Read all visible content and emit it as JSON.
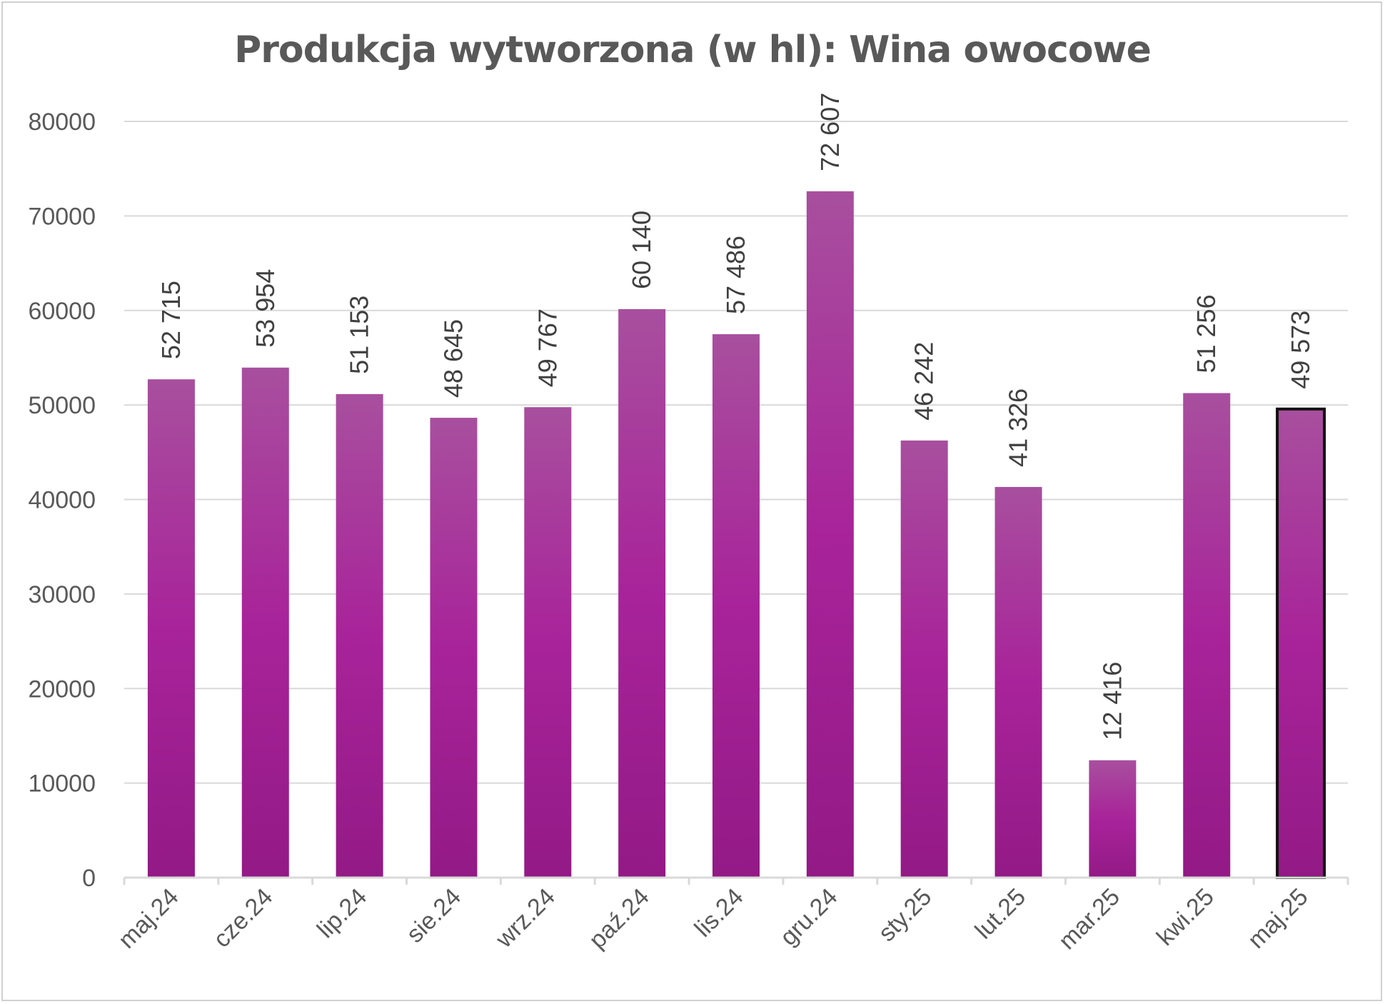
{
  "chart_data": {
    "type": "bar",
    "title": "Produkcja wytworzona (w hl): Wina owocowe",
    "categories": [
      "maj.24",
      "cze.24",
      "lip.24",
      "sie.24",
      "wrz.24",
      "paź.24",
      "lis.24",
      "gru.24",
      "sty.25",
      "lut.25",
      "mar.25",
      "kwi.25",
      "maj.25"
    ],
    "values": [
      52715,
      53954,
      51153,
      48645,
      49767,
      60140,
      57486,
      72607,
      46242,
      41326,
      12416,
      51256,
      49573
    ],
    "data_labels": [
      "52 715",
      "53 954",
      "51 153",
      "48 645",
      "49 767",
      "60 140",
      "57 486",
      "72 607",
      "46 242",
      "41 326",
      "12 416",
      "51 256",
      "49 573"
    ],
    "yticks": [
      "0",
      "10000",
      "20000",
      "30000",
      "40000",
      "50000",
      "60000",
      "70000",
      "80000"
    ],
    "ylim": [
      0,
      80000
    ],
    "grid": true,
    "legend": "none",
    "highlighted_category": "maj.25",
    "bar_color_top": "#a84f9e",
    "bar_color_mid": "#a8239a",
    "bar_color_bottom": "#931a86",
    "highlight_border_color": "#111111",
    "grid_color": "#d9d9d9"
  }
}
